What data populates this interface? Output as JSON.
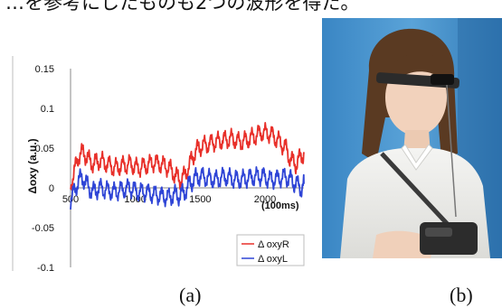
{
  "header": {
    "text": "…を参考にしたものも2つの波形を得た。"
  },
  "captions": {
    "a": "(a)",
    "b": "(b)"
  },
  "chart_data": {
    "type": "line",
    "title": "",
    "ylabel": "Δoxy (a.u.)",
    "xlabel": "(100ms)",
    "xlim": [
      500,
      2300
    ],
    "ylim": [
      -0.1,
      0.15
    ],
    "x_ticks": [
      {
        "value": 500,
        "label": "500"
      },
      {
        "value": 1000,
        "label": "1000"
      },
      {
        "value": 1500,
        "label": "1500"
      },
      {
        "value": 2000,
        "label": "2000"
      }
    ],
    "y_ticks": [
      {
        "value": 0.15,
        "label": "0.15"
      },
      {
        "value": 0.1,
        "label": "0.1"
      },
      {
        "value": 0.05,
        "label": "0.05"
      },
      {
        "value": 0,
        "label": "0"
      },
      {
        "value": -0.05,
        "label": "-0.05"
      },
      {
        "value": -0.1,
        "label": "-0.1"
      }
    ],
    "legend_position": "bottom-right",
    "series": [
      {
        "name": "Δ oxyR",
        "color": "#e8302a",
        "x": [
          500,
          530,
          560,
          600,
          640,
          680,
          720,
          780,
          840,
          900,
          960,
          1020,
          1080,
          1140,
          1200,
          1260,
          1300,
          1340,
          1380,
          1420,
          1460,
          1500,
          1560,
          1620,
          1680,
          1740,
          1800,
          1860,
          1920,
          1980,
          2040,
          2100,
          2160,
          2200,
          2240,
          2280,
          2300
        ],
        "values": [
          0.005,
          0.02,
          0.04,
          0.045,
          0.035,
          0.03,
          0.035,
          0.03,
          0.025,
          0.028,
          0.03,
          0.025,
          0.028,
          0.032,
          0.03,
          0.025,
          0.018,
          0.01,
          0.015,
          0.03,
          0.045,
          0.052,
          0.055,
          0.058,
          0.06,
          0.062,
          0.058,
          0.06,
          0.065,
          0.07,
          0.068,
          0.06,
          0.05,
          0.035,
          0.03,
          0.04,
          0.045
        ]
      },
      {
        "name": "Δ oxyL",
        "color": "#2f45d6",
        "x": [
          500,
          530,
          560,
          600,
          640,
          680,
          720,
          780,
          840,
          900,
          960,
          1020,
          1080,
          1140,
          1200,
          1260,
          1300,
          1340,
          1380,
          1420,
          1460,
          1500,
          1560,
          1620,
          1680,
          1740,
          1800,
          1860,
          1920,
          1980,
          2040,
          2100,
          2160,
          2200,
          2240,
          2280,
          2300
        ],
        "values": [
          -0.015,
          -0.005,
          0.01,
          0.012,
          0.0,
          -0.005,
          0.0,
          -0.003,
          -0.005,
          -0.002,
          0.0,
          -0.005,
          -0.005,
          -0.008,
          -0.01,
          -0.012,
          -0.008,
          -0.01,
          -0.005,
          0.005,
          0.012,
          0.015,
          0.012,
          0.01,
          0.014,
          0.012,
          0.01,
          0.012,
          0.014,
          0.015,
          0.01,
          0.012,
          0.014,
          0.01,
          0.005,
          0.0,
          0.005
        ]
      }
    ]
  },
  "photo": {
    "icon": "person-with-headband-photo"
  }
}
